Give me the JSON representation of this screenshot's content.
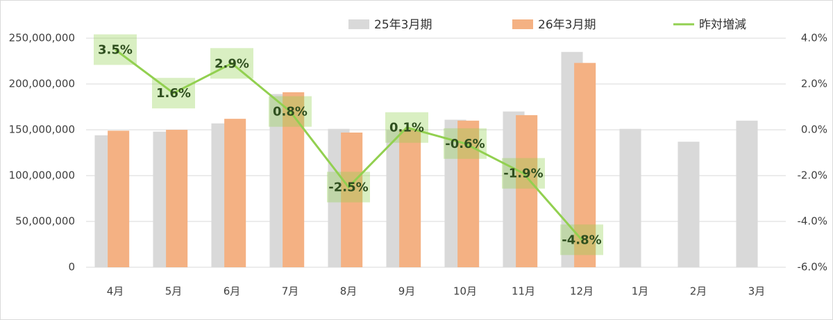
{
  "chart_data": {
    "type": "bar-line",
    "categories": [
      "4月",
      "5月",
      "6月",
      "7月",
      "8月",
      "9月",
      "10月",
      "11月",
      "12月",
      "1月",
      "2月",
      "3月"
    ],
    "series": [
      {
        "name": "25年3月期",
        "color": "#d9d9d9",
        "values": [
          144000000,
          148000000,
          157000000,
          189000000,
          151000000,
          150000000,
          161000000,
          170000000,
          235000000,
          151000000,
          137000000,
          160000000
        ]
      },
      {
        "name": "26年3月期",
        "color": "#f4b183",
        "values": [
          149000000,
          150000000,
          162000000,
          191000000,
          147000000,
          150000000,
          160000000,
          166000000,
          223000000,
          null,
          null,
          null
        ]
      },
      {
        "name": "昨対増減",
        "color": "#92d050",
        "axis": "y2",
        "values": [
          3.5,
          1.6,
          2.9,
          0.8,
          -2.5,
          0.1,
          -0.6,
          -1.9,
          -4.8,
          null,
          null,
          null
        ],
        "value_labels": [
          "3.5%",
          "1.6%",
          "2.9%",
          "0.8%",
          "-2.5%",
          "0.1%",
          "-0.6%",
          "-1.9%",
          "-4.8%",
          null,
          null,
          null
        ]
      }
    ],
    "ylim": [
      0,
      250000000
    ],
    "yticks": [
      0,
      {
        "value": 50000000,
        "label": "50,000,000"
      },
      {
        "value": 100000000,
        "label": "100,000,000"
      },
      {
        "value": 150000000,
        "label": "150,000,000"
      },
      {
        "value": 200000000,
        "label": "200,000,000"
      },
      {
        "value": 250000000,
        "label": "250,000,000"
      }
    ],
    "y2lim": [
      -6,
      4
    ],
    "y2ticks": [
      {
        "value": -6,
        "label": "-6.0%"
      },
      {
        "value": -4,
        "label": "-4.0%"
      },
      {
        "value": -2,
        "label": "-2.0%"
      },
      {
        "value": 0,
        "label": "0.0%"
      },
      {
        "value": 2,
        "label": "2.0%"
      },
      {
        "value": 4,
        "label": "4.0%"
      }
    ],
    "grid": true
  }
}
